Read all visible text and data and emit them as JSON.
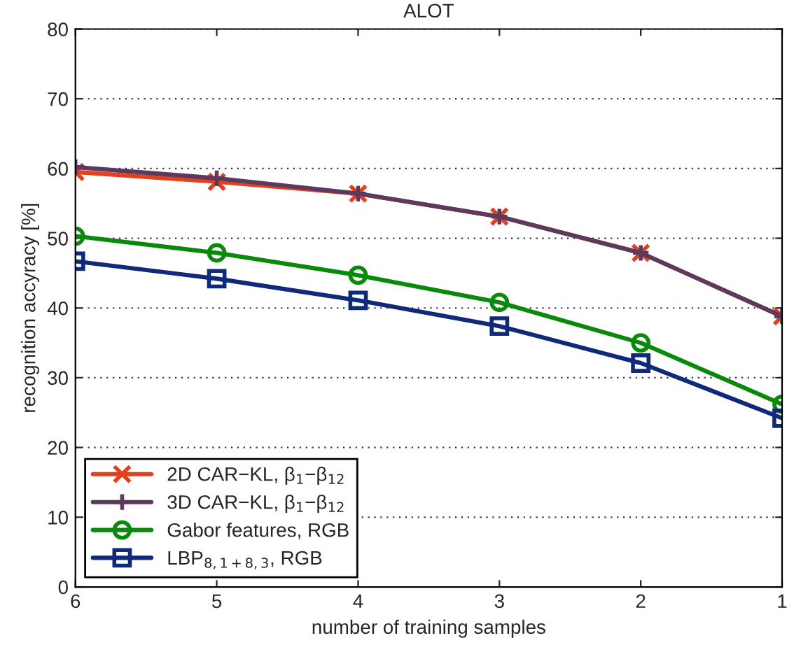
{
  "chart_data": {
    "type": "line",
    "title": "ALOT",
    "xlabel": "number of training samples",
    "ylabel": "recognition accyracy [%]",
    "x": [
      6,
      5,
      4,
      3,
      2,
      1
    ],
    "series": [
      {
        "name": "2D CAR−KL, β$_{1}$−β$_{12}$",
        "color": "#e5401c",
        "marker": "cross",
        "values": [
          59.5,
          58.1,
          56.4,
          53.1,
          47.9,
          38.8
        ]
      },
      {
        "name": "3D CAR−KL, β$_{1}$−β$_{12}$",
        "color": "#5c3a5e",
        "marker": "plus",
        "values": [
          60.2,
          58.6,
          56.4,
          53.1,
          47.9,
          38.8
        ]
      },
      {
        "name": "Gabor features, RGB",
        "color": "#0a8a0a",
        "marker": "circle",
        "values": [
          50.3,
          47.9,
          44.7,
          40.8,
          35.0,
          26.2
        ]
      },
      {
        "name": "LBP$_{8,1+8,3}$, RGB",
        "color": "#0f2a78",
        "marker": "square",
        "values": [
          46.7,
          44.2,
          41.1,
          37.4,
          32.1,
          24.2
        ]
      }
    ],
    "xlim": [
      6,
      1
    ],
    "xticks": [
      6,
      5,
      4,
      3,
      2,
      1
    ],
    "ylim": [
      0,
      80
    ],
    "yticks": [
      0,
      10,
      20,
      30,
      40,
      50,
      60,
      70,
      80
    ],
    "grid": "y",
    "legend": "bottom left",
    "line_style": "solid"
  }
}
